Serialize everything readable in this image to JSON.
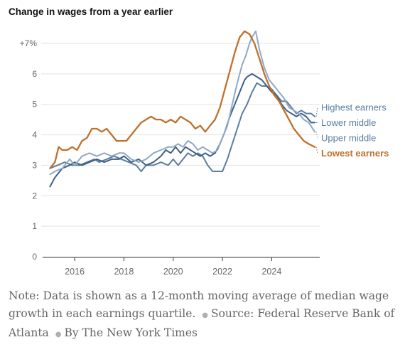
{
  "chart_data": {
    "type": "line",
    "title": "Change in wages from a year earlier",
    "xlabel": "",
    "ylabel": "",
    "xlim": [
      2014.7,
      2025.95
    ],
    "ylim": [
      0,
      7
    ],
    "y_ticks": [
      {
        "value": 0,
        "label": "0"
      },
      {
        "value": 1,
        "label": "1"
      },
      {
        "value": 2,
        "label": "2"
      },
      {
        "value": 3,
        "label": "3"
      },
      {
        "value": 4,
        "label": "4"
      },
      {
        "value": 5,
        "label": "5"
      },
      {
        "value": 6,
        "label": "6"
      },
      {
        "value": 7,
        "label": "+7%"
      }
    ],
    "x_ticks": [
      {
        "value": 2016,
        "label": "2016"
      },
      {
        "value": 2018,
        "label": "2018"
      },
      {
        "value": 2020,
        "label": "2020"
      },
      {
        "value": 2022,
        "label": "2022"
      },
      {
        "value": 2024,
        "label": "2024"
      }
    ],
    "grid": "horizontal",
    "legend": "direct labels at right end of lines",
    "series": [
      {
        "name": "Highest earners",
        "color": "#5b7da0",
        "width": 2,
        "label_y": 4.9,
        "points": [
          [
            2015.0,
            2.9
          ],
          [
            2015.3,
            3.0
          ],
          [
            2015.6,
            3.1
          ],
          [
            2015.9,
            3.0
          ],
          [
            2016.2,
            3.0
          ],
          [
            2016.5,
            3.1
          ],
          [
            2016.8,
            3.2
          ],
          [
            2017.0,
            3.1
          ],
          [
            2017.3,
            3.2
          ],
          [
            2017.6,
            3.3
          ],
          [
            2017.9,
            3.2
          ],
          [
            2018.2,
            3.1
          ],
          [
            2018.5,
            3.0
          ],
          [
            2018.7,
            2.8
          ],
          [
            2018.9,
            3.0
          ],
          [
            2019.2,
            3.0
          ],
          [
            2019.5,
            3.1
          ],
          [
            2019.8,
            3.0
          ],
          [
            2020.0,
            3.2
          ],
          [
            2020.2,
            3.0
          ],
          [
            2020.4,
            3.2
          ],
          [
            2020.6,
            3.4
          ],
          [
            2020.8,
            3.3
          ],
          [
            2021.0,
            3.4
          ],
          [
            2021.2,
            3.3
          ],
          [
            2021.4,
            3.0
          ],
          [
            2021.6,
            2.8
          ],
          [
            2021.8,
            2.8
          ],
          [
            2022.0,
            2.8
          ],
          [
            2022.2,
            3.2
          ],
          [
            2022.4,
            3.7
          ],
          [
            2022.6,
            4.2
          ],
          [
            2022.8,
            4.7
          ],
          [
            2023.0,
            5.0
          ],
          [
            2023.2,
            5.4
          ],
          [
            2023.4,
            5.7
          ],
          [
            2023.6,
            5.6
          ],
          [
            2023.8,
            5.6
          ],
          [
            2024.0,
            5.5
          ],
          [
            2024.2,
            5.3
          ],
          [
            2024.4,
            5.1
          ],
          [
            2024.6,
            5.1
          ],
          [
            2024.8,
            4.9
          ],
          [
            2025.0,
            4.7
          ],
          [
            2025.2,
            4.8
          ],
          [
            2025.4,
            4.7
          ],
          [
            2025.6,
            4.7
          ],
          [
            2025.75,
            4.6
          ]
        ]
      },
      {
        "name": "Lower middle",
        "color": "#3f5f86",
        "width": 2,
        "label_y": 4.4,
        "points": [
          [
            2015.0,
            2.3
          ],
          [
            2015.2,
            2.6
          ],
          [
            2015.5,
            2.9
          ],
          [
            2015.8,
            3.0
          ],
          [
            2016.0,
            3.1
          ],
          [
            2016.3,
            3.0
          ],
          [
            2016.6,
            3.1
          ],
          [
            2016.9,
            3.2
          ],
          [
            2017.2,
            3.1
          ],
          [
            2017.5,
            3.2
          ],
          [
            2017.8,
            3.2
          ],
          [
            2018.0,
            3.3
          ],
          [
            2018.3,
            3.1
          ],
          [
            2018.6,
            3.2
          ],
          [
            2018.9,
            3.0
          ],
          [
            2019.2,
            3.1
          ],
          [
            2019.5,
            3.3
          ],
          [
            2019.7,
            3.5
          ],
          [
            2019.9,
            3.4
          ],
          [
            2020.1,
            3.6
          ],
          [
            2020.3,
            3.4
          ],
          [
            2020.5,
            3.6
          ],
          [
            2020.7,
            3.5
          ],
          [
            2020.9,
            3.4
          ],
          [
            2021.1,
            3.3
          ],
          [
            2021.3,
            3.4
          ],
          [
            2021.5,
            3.3
          ],
          [
            2021.7,
            3.4
          ],
          [
            2021.9,
            3.7
          ],
          [
            2022.1,
            4.1
          ],
          [
            2022.3,
            4.6
          ],
          [
            2022.5,
            5.0
          ],
          [
            2022.7,
            5.4
          ],
          [
            2022.9,
            5.8
          ],
          [
            2023.0,
            5.9
          ],
          [
            2023.2,
            6.0
          ],
          [
            2023.4,
            5.9
          ],
          [
            2023.6,
            5.8
          ],
          [
            2023.8,
            5.6
          ],
          [
            2024.0,
            5.4
          ],
          [
            2024.2,
            5.3
          ],
          [
            2024.4,
            5.0
          ],
          [
            2024.6,
            4.8
          ],
          [
            2024.8,
            4.7
          ],
          [
            2025.0,
            4.6
          ],
          [
            2025.2,
            4.7
          ],
          [
            2025.4,
            4.6
          ],
          [
            2025.6,
            4.4
          ],
          [
            2025.75,
            4.4
          ]
        ]
      },
      {
        "name": "Upper middle",
        "color": "#8fa8c6",
        "width": 2,
        "label_y": 3.9,
        "points": [
          [
            2015.0,
            2.7
          ],
          [
            2015.2,
            2.8
          ],
          [
            2015.5,
            2.9
          ],
          [
            2015.8,
            3.2
          ],
          [
            2016.0,
            3.0
          ],
          [
            2016.3,
            3.3
          ],
          [
            2016.6,
            3.4
          ],
          [
            2016.9,
            3.3
          ],
          [
            2017.2,
            3.4
          ],
          [
            2017.5,
            3.3
          ],
          [
            2017.8,
            3.4
          ],
          [
            2018.0,
            3.4
          ],
          [
            2018.3,
            3.2
          ],
          [
            2018.6,
            3.1
          ],
          [
            2018.9,
            3.2
          ],
          [
            2019.2,
            3.4
          ],
          [
            2019.5,
            3.5
          ],
          [
            2019.8,
            3.6
          ],
          [
            2020.0,
            3.6
          ],
          [
            2020.2,
            3.7
          ],
          [
            2020.4,
            3.6
          ],
          [
            2020.6,
            3.8
          ],
          [
            2020.8,
            3.7
          ],
          [
            2021.0,
            3.5
          ],
          [
            2021.2,
            3.6
          ],
          [
            2021.4,
            3.5
          ],
          [
            2021.6,
            3.4
          ],
          [
            2021.8,
            3.5
          ],
          [
            2022.0,
            3.9
          ],
          [
            2022.2,
            4.3
          ],
          [
            2022.4,
            5.0
          ],
          [
            2022.6,
            5.7
          ],
          [
            2022.8,
            6.3
          ],
          [
            2022.95,
            6.6
          ],
          [
            2023.1,
            7.0
          ],
          [
            2023.2,
            7.2
          ],
          [
            2023.35,
            7.4
          ],
          [
            2023.5,
            6.8
          ],
          [
            2023.7,
            6.2
          ],
          [
            2023.9,
            5.8
          ],
          [
            2024.1,
            5.6
          ],
          [
            2024.3,
            5.4
          ],
          [
            2024.5,
            5.2
          ],
          [
            2024.7,
            4.9
          ],
          [
            2024.9,
            4.8
          ],
          [
            2025.1,
            4.7
          ],
          [
            2025.3,
            4.5
          ],
          [
            2025.5,
            4.4
          ],
          [
            2025.75,
            4.1
          ]
        ]
      },
      {
        "name": "Lowest earners",
        "color": "#c0702c",
        "width": 2.3,
        "label_y": 3.4,
        "points": [
          [
            2015.0,
            2.9
          ],
          [
            2015.2,
            3.1
          ],
          [
            2015.35,
            3.6
          ],
          [
            2015.5,
            3.5
          ],
          [
            2015.7,
            3.5
          ],
          [
            2015.9,
            3.6
          ],
          [
            2016.1,
            3.5
          ],
          [
            2016.3,
            3.8
          ],
          [
            2016.5,
            3.9
          ],
          [
            2016.7,
            4.2
          ],
          [
            2016.9,
            4.2
          ],
          [
            2017.1,
            4.1
          ],
          [
            2017.3,
            4.2
          ],
          [
            2017.5,
            4.0
          ],
          [
            2017.7,
            3.8
          ],
          [
            2017.9,
            3.8
          ],
          [
            2018.1,
            3.8
          ],
          [
            2018.3,
            4.0
          ],
          [
            2018.5,
            4.2
          ],
          [
            2018.7,
            4.4
          ],
          [
            2018.9,
            4.5
          ],
          [
            2019.1,
            4.6
          ],
          [
            2019.3,
            4.5
          ],
          [
            2019.5,
            4.5
          ],
          [
            2019.7,
            4.4
          ],
          [
            2019.9,
            4.5
          ],
          [
            2020.1,
            4.4
          ],
          [
            2020.3,
            4.6
          ],
          [
            2020.5,
            4.5
          ],
          [
            2020.7,
            4.4
          ],
          [
            2020.9,
            4.2
          ],
          [
            2021.1,
            4.3
          ],
          [
            2021.3,
            4.1
          ],
          [
            2021.5,
            4.3
          ],
          [
            2021.7,
            4.5
          ],
          [
            2021.9,
            4.9
          ],
          [
            2022.1,
            5.5
          ],
          [
            2022.3,
            6.1
          ],
          [
            2022.5,
            6.7
          ],
          [
            2022.7,
            7.2
          ],
          [
            2022.9,
            7.4
          ],
          [
            2023.1,
            7.3
          ],
          [
            2023.3,
            7.0
          ],
          [
            2023.5,
            6.5
          ],
          [
            2023.7,
            6.0
          ],
          [
            2023.9,
            5.6
          ],
          [
            2024.1,
            5.3
          ],
          [
            2024.3,
            5.1
          ],
          [
            2024.5,
            4.8
          ],
          [
            2024.7,
            4.5
          ],
          [
            2024.9,
            4.2
          ],
          [
            2025.1,
            4.0
          ],
          [
            2025.3,
            3.8
          ],
          [
            2025.5,
            3.7
          ],
          [
            2025.75,
            3.6
          ]
        ]
      }
    ]
  },
  "note": {
    "text": "Note: Data is shown as a 12-month moving average of median wage growth in each earnings quartile.",
    "source": "Source: Federal Reserve Bank of Atlanta",
    "byline": "By The New York Times"
  }
}
